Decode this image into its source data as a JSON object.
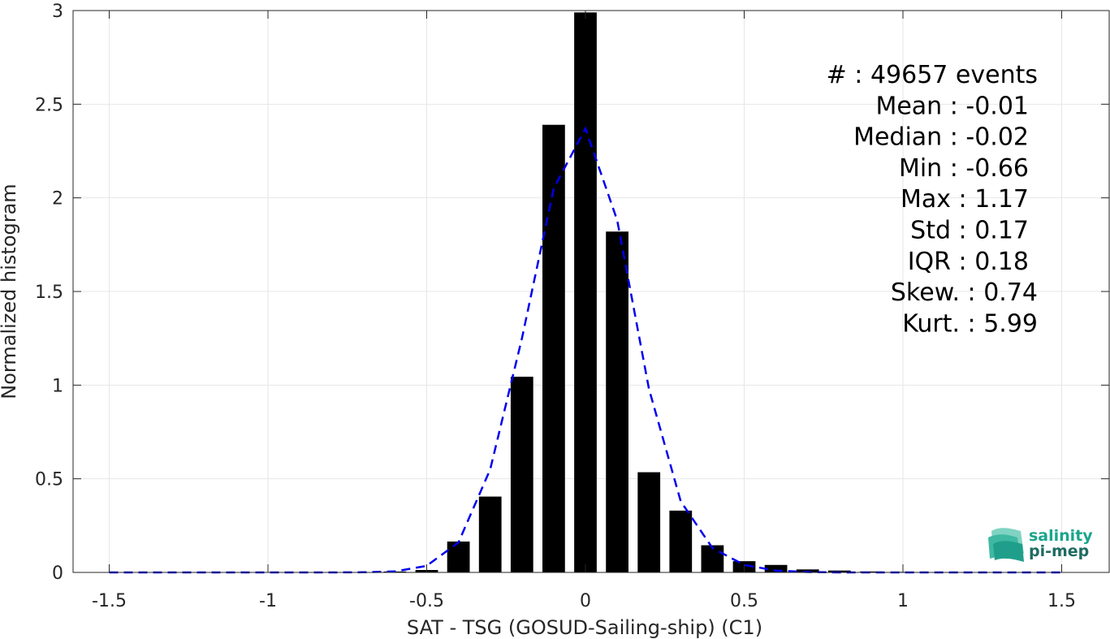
{
  "chart_data": {
    "type": "bar",
    "title": "",
    "xlabel": "SAT - TSG (GOSUD-Sailing-ship) (C1)",
    "ylabel": "Normalized histogram",
    "xlim": [
      -1.5,
      1.5
    ],
    "ylim": [
      0,
      3
    ],
    "xticks": [
      -1.5,
      -1,
      -0.5,
      0,
      0.5,
      1,
      1.5
    ],
    "yticks": [
      0,
      0.5,
      1,
      1.5,
      2,
      2.5,
      3
    ],
    "xtick_labels": [
      "-1.5",
      "-1",
      "-0.5",
      "0",
      "0.5",
      "1",
      "1.5"
    ],
    "ytick_labels": [
      "0",
      "0.5",
      "1",
      "1.5",
      "2",
      "2.5",
      "3"
    ],
    "grid": true,
    "bin_width": 0.1,
    "bars": {
      "name": "",
      "color": "#000000",
      "x": [
        -0.6,
        -0.5,
        -0.4,
        -0.3,
        -0.2,
        -0.1,
        0.0,
        0.1,
        0.2,
        0.3,
        0.4,
        0.5,
        0.6,
        0.7,
        0.8,
        0.9,
        1.0,
        1.1,
        1.2
      ],
      "values": [
        0.005,
        0.013,
        0.165,
        0.405,
        1.045,
        2.39,
        2.99,
        1.82,
        0.535,
        0.33,
        0.145,
        0.06,
        0.04,
        0.016,
        0.01,
        0.005,
        0.003,
        0.002,
        0.001
      ]
    },
    "fit_line": {
      "name": "",
      "color": "#0000ee",
      "style": "dashed",
      "x": [
        -1.5,
        -1.4,
        -1.3,
        -1.2,
        -1.1,
        -1.0,
        -0.9,
        -0.8,
        -0.7,
        -0.6,
        -0.5,
        -0.4,
        -0.3,
        -0.2,
        -0.1,
        0.0,
        0.1,
        0.2,
        0.3,
        0.4,
        0.5,
        0.6,
        0.7,
        0.8,
        0.9,
        1.0,
        1.1,
        1.2,
        1.3,
        1.4,
        1.5
      ],
      "values": [
        0,
        0,
        0,
        0,
        0,
        0,
        0,
        0,
        0.001,
        0.005,
        0.035,
        0.16,
        0.55,
        1.25,
        2.05,
        2.37,
        1.88,
        0.98,
        0.38,
        0.13,
        0.04,
        0.01,
        0.002,
        0,
        0,
        0,
        0,
        0,
        0,
        0,
        0
      ]
    },
    "stats": [
      {
        "label": "#  : 49657 events",
        "indent": 0
      },
      {
        "label": "Mean : -0.01",
        "indent": 1
      },
      {
        "label": "Median : -0.02",
        "indent": 1
      },
      {
        "label": "Min : -0.66",
        "indent": 1
      },
      {
        "label": "Max : 1.17",
        "indent": 1
      },
      {
        "label": "Std : 0.17",
        "indent": 1
      },
      {
        "label": "IQR : 0.18",
        "indent": 1
      },
      {
        "label": "Skew. : 0.74",
        "indent": 0
      },
      {
        "label": "Kurt. : 5.99",
        "indent": 0
      }
    ]
  },
  "logo": {
    "line1": "salinity",
    "line2": "pi-mep",
    "color1": "#1aa58c",
    "color2": "#1f6b62"
  }
}
